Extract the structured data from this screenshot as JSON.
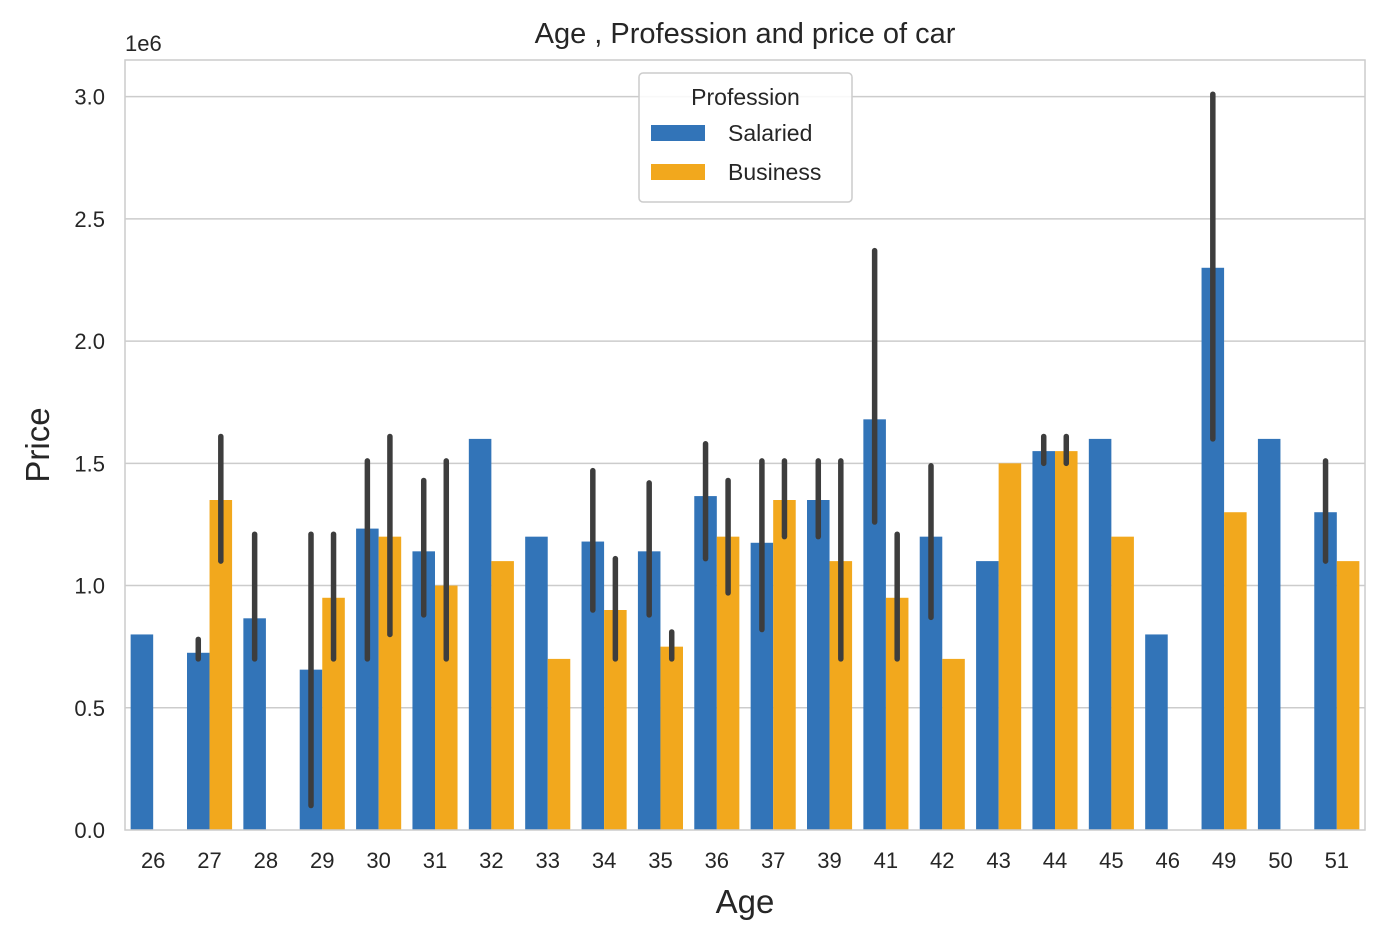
{
  "chart_data": {
    "type": "bar",
    "title": "Age , Profession and price of car",
    "xlabel": "Age",
    "ylabel": "Price",
    "y_offset_text": "1e6",
    "ylim": [
      0,
      3150000
    ],
    "yticks": [
      0,
      500000,
      1000000,
      1500000,
      2000000,
      2500000,
      3000000
    ],
    "ytick_labels": [
      "0.0",
      "0.5",
      "1.0",
      "1.5",
      "2.0",
      "2.5",
      "3.0"
    ],
    "grid": "y",
    "legend": {
      "title": "Profession",
      "placement": "top-center"
    },
    "categories": [
      "26",
      "27",
      "28",
      "29",
      "30",
      "31",
      "32",
      "33",
      "34",
      "35",
      "36",
      "37",
      "39",
      "41",
      "42",
      "43",
      "44",
      "45",
      "46",
      "49",
      "50",
      "51"
    ],
    "series": [
      {
        "name": "Salaried",
        "color": "#3274b8",
        "values": [
          800000,
          725000,
          866000,
          656000,
          1233000,
          1140000,
          1600000,
          1200000,
          1180000,
          1140000,
          1366000,
          1175000,
          1350000,
          1680000,
          1200000,
          1100000,
          1550000,
          1600000,
          800000,
          2300000,
          1600000,
          1300000
        ],
        "errors": [
          null,
          [
            700000,
            780000
          ],
          [
            700000,
            1210000
          ],
          [
            100000,
            1210000
          ],
          [
            700000,
            1510000
          ],
          [
            880000,
            1430000
          ],
          null,
          null,
          [
            900000,
            1470000
          ],
          [
            880000,
            1420000
          ],
          [
            1110000,
            1580000
          ],
          [
            820000,
            1510000
          ],
          [
            1200000,
            1510000
          ],
          [
            1260000,
            2370000
          ],
          [
            870000,
            1490000
          ],
          null,
          [
            1500000,
            1610000
          ],
          null,
          null,
          [
            1600000,
            3010000
          ],
          null,
          [
            1100000,
            1510000
          ]
        ]
      },
      {
        "name": "Business",
        "color": "#f2a81d",
        "values": [
          null,
          1350000,
          null,
          950000,
          1200000,
          1000000,
          1100000,
          700000,
          900000,
          750000,
          1200000,
          1350000,
          1100000,
          950000,
          700000,
          1500000,
          1550000,
          1200000,
          null,
          1300000,
          null,
          1100000
        ],
        "errors": [
          null,
          [
            1100000,
            1610000
          ],
          null,
          [
            700000,
            1210000
          ],
          [
            800000,
            1610000
          ],
          [
            700000,
            1510000
          ],
          null,
          null,
          [
            700000,
            1110000
          ],
          [
            700000,
            810000
          ],
          [
            970000,
            1430000
          ],
          [
            1200000,
            1510000
          ],
          [
            700000,
            1510000
          ],
          [
            700000,
            1210000
          ],
          null,
          null,
          [
            1500000,
            1610000
          ],
          null,
          null,
          null,
          null,
          null
        ]
      }
    ]
  }
}
